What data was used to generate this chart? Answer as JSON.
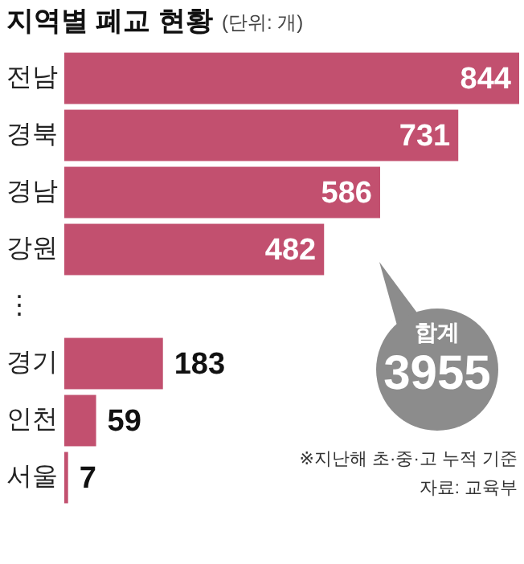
{
  "chart_data": {
    "type": "bar",
    "orientation": "horizontal",
    "title": "지역별 폐교 현황",
    "subtitle": "(단위: 개)",
    "categories": [
      "전남",
      "경북",
      "경남",
      "강원",
      "⋮",
      "경기",
      "인천",
      "서울"
    ],
    "values": [
      844,
      731,
      586,
      482,
      null,
      183,
      59,
      7
    ],
    "color": "#c2506f",
    "data_labels": true,
    "annotations": [
      "합계",
      "3955",
      "※지난해 초·중·고 누적 기준",
      "자료: 교육부"
    ]
  }
}
